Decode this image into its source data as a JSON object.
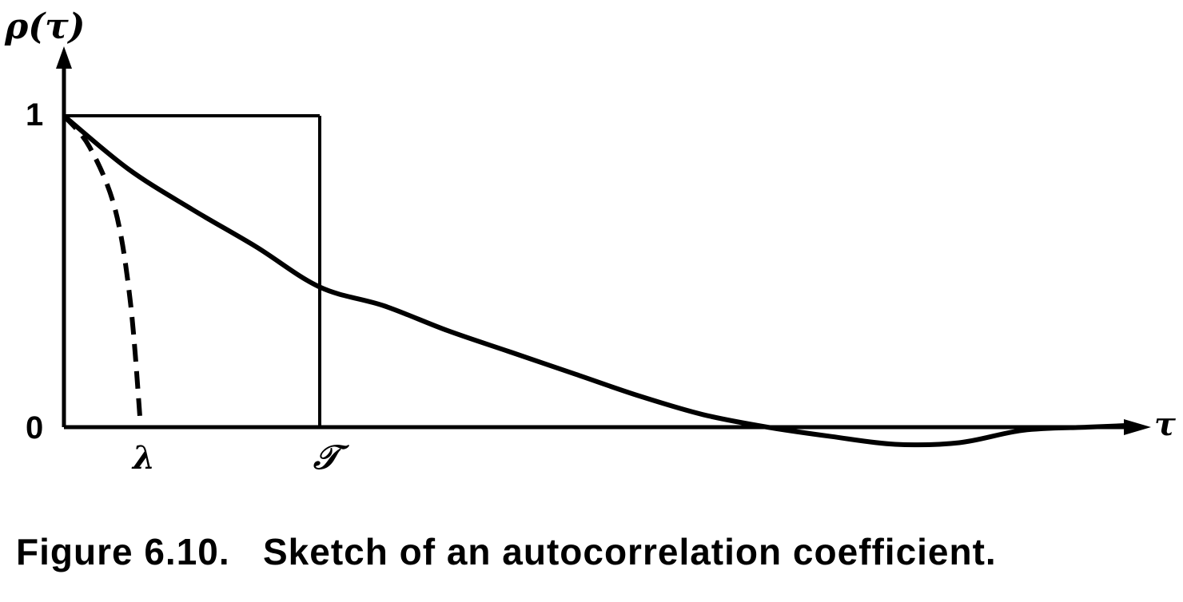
{
  "caption": "Figure 6.10.   Sketch of an autocorrelation coefficient.",
  "chart_data": {
    "type": "line",
    "ylabel": "ρ(τ)",
    "xlabel": "τ",
    "y_ticks": [
      "1",
      "0"
    ],
    "x_markers": [
      "λ",
      "𝒯"
    ],
    "xlim": [
      0,
      4.25
    ],
    "ylim": [
      -0.06,
      1.1
    ],
    "series": [
      {
        "style": "solid",
        "points": [
          [
            0,
            1.0
          ],
          [
            0.25,
            0.83
          ],
          [
            0.5,
            0.7
          ],
          [
            0.75,
            0.58
          ],
          [
            1.0,
            0.45
          ],
          [
            1.25,
            0.39
          ],
          [
            1.5,
            0.31
          ],
          [
            1.75,
            0.24
          ],
          [
            2.0,
            0.17
          ],
          [
            2.25,
            0.1
          ],
          [
            2.5,
            0.04
          ],
          [
            2.75,
            0.0
          ],
          [
            3.0,
            -0.03
          ],
          [
            3.25,
            -0.055
          ],
          [
            3.5,
            -0.05
          ],
          [
            3.75,
            -0.01
          ],
          [
            4.0,
            0.0
          ],
          [
            4.15,
            0.005
          ]
        ]
      },
      {
        "style": "dashed",
        "points": [
          [
            0,
            1.0
          ],
          [
            0.1,
            0.9
          ],
          [
            0.2,
            0.7
          ],
          [
            0.26,
            0.4
          ],
          [
            0.3,
            0.0
          ]
        ]
      }
    ],
    "rectangle": {
      "x0": 0,
      "x1": 1.0,
      "y0": 0,
      "y1": 1.0
    },
    "lambda_value": 0.3,
    "T_value": 1.0,
    "background_color": "#ffffff",
    "line_color": "#000000"
  }
}
